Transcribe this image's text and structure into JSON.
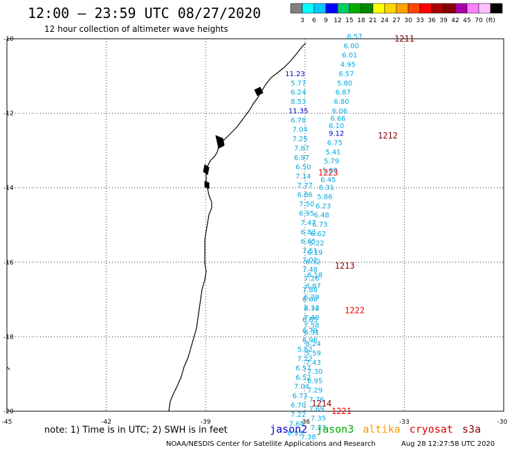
{
  "header": {
    "title": "12:00 – 23:59 UTC 08/27/2020",
    "subtitle": "12 hour collection of altimeter wave heights"
  },
  "legend": {
    "colors": [
      "#808080",
      "#00ffff",
      "#00c8ff",
      "#0000ff",
      "#00cc66",
      "#00aa00",
      "#008800",
      "#ffff00",
      "#ffd700",
      "#ffa500",
      "#ff4500",
      "#ff0000",
      "#aa0000",
      "#880000",
      "#aa00aa",
      "#ff80ff",
      "#ffc0ff",
      "#000000"
    ],
    "labels": [
      "3",
      "6",
      "9",
      "12",
      "15",
      "18",
      "21",
      "24",
      "27",
      "30",
      "33",
      "36",
      "39",
      "42",
      "45",
      "70",
      "(ft)"
    ]
  },
  "axes": {
    "lat_labels": [
      "-10",
      "-12",
      "-14",
      "-16",
      "-18",
      "-20"
    ],
    "lon_labels": [
      "-45",
      "-42",
      "-39",
      "-36",
      "-33",
      "-30"
    ]
  },
  "note": "note: 1) Time is in UTC; 2) SWH is in feet",
  "satellites": [
    {
      "name": "jason2",
      "color": "#0000cc"
    },
    {
      "name": "jason3",
      "color": "#00aa00"
    },
    {
      "name": "altika",
      "color": "#ff9900"
    },
    {
      "name": "cryosat",
      "color": "#dd0000"
    },
    {
      "name": "s3a",
      "color": "#880000"
    }
  ],
  "footer": {
    "credit": "NOAA/NESDIS Center for Satellite Applications and Research",
    "timestamp": "Aug 28 12:27:58 UTC 2020"
  },
  "tracks": [
    {
      "id": "1211",
      "label_color": "#880000",
      "points": [
        {
          "lat": -10.0,
          "lon": -34.5,
          "v": "6.57"
        },
        {
          "lat": -10.25,
          "lon": -34.6,
          "v": "6.00"
        },
        {
          "lat": -10.5,
          "lon": -34.65,
          "v": "6.01"
        },
        {
          "lat": -10.75,
          "lon": -34.7,
          "v": "4.95"
        },
        {
          "lat": -11.0,
          "lon": -34.75,
          "v": "6.57"
        },
        {
          "lat": -11.25,
          "lon": -34.8,
          "v": "5.80"
        },
        {
          "lat": -11.5,
          "lon": -34.85,
          "v": "6.87"
        },
        {
          "lat": -11.75,
          "lon": -34.9,
          "v": "6.80"
        },
        {
          "lat": -12.0,
          "lon": -34.95,
          "v": "6.06"
        },
        {
          "lat": -12.2,
          "lon": -35.0,
          "v": "6.66"
        },
        {
          "lat": -12.4,
          "lon": -35.05,
          "v": "6.10"
        }
      ]
    },
    {
      "id": "1212",
      "label_color": "#880000",
      "points": [
        {
          "lat": -12.6,
          "lon": -35.05,
          "v": "9.12"
        },
        {
          "lat": -12.85,
          "lon": -35.1,
          "v": "6.75"
        },
        {
          "lat": -13.1,
          "lon": -35.15,
          "v": "5.41"
        },
        {
          "lat": -13.35,
          "lon": -35.2,
          "v": "5.79"
        },
        {
          "lat": -13.6,
          "lon": -35.25,
          "v": "5.88"
        },
        {
          "lat": -13.85,
          "lon": -35.3,
          "v": "6.45"
        },
        {
          "lat": -14.05,
          "lon": -35.35,
          "v": "6.31"
        },
        {
          "lat": -14.3,
          "lon": -35.4,
          "v": "5.86"
        },
        {
          "lat": -14.55,
          "lon": -35.45,
          "v": "6.23"
        },
        {
          "lat": -14.8,
          "lon": -35.5,
          "v": "6.48"
        },
        {
          "lat": -15.05,
          "lon": -35.55,
          "v": "6.73"
        },
        {
          "lat": -15.3,
          "lon": -35.6,
          "v": "6.62"
        },
        {
          "lat": -15.55,
          "lon": -35.65,
          "v": "5.22"
        },
        {
          "lat": -15.8,
          "lon": -35.7,
          "v": "6.19"
        },
        {
          "lat": -16.05,
          "lon": -35.75,
          "v": "6.32"
        }
      ]
    },
    {
      "id": "1223",
      "label_color": "#ee0000",
      "points": [
        {
          "lat": -11.0,
          "lon": -36.3,
          "v": "11.23"
        },
        {
          "lat": -11.25,
          "lon": -36.2,
          "v": "5.77"
        },
        {
          "lat": -11.5,
          "lon": -36.2,
          "v": "6.24"
        },
        {
          "lat": -11.75,
          "lon": -36.2,
          "v": "8.53"
        },
        {
          "lat": -12.0,
          "lon": -36.2,
          "v": "11.35"
        },
        {
          "lat": -12.25,
          "lon": -36.2,
          "v": "6.78"
        },
        {
          "lat": -12.5,
          "lon": -36.15,
          "v": "7.04"
        },
        {
          "lat": -12.75,
          "lon": -36.15,
          "v": "7.25"
        },
        {
          "lat": -13.0,
          "lon": -36.1,
          "v": "7.67"
        },
        {
          "lat": -13.25,
          "lon": -36.1,
          "v": "6.97"
        },
        {
          "lat": -13.5,
          "lon": -36.05,
          "v": "6.50"
        },
        {
          "lat": -13.75,
          "lon": -36.05,
          "v": "7.14"
        },
        {
          "lat": -14.0,
          "lon": -36.0,
          "v": "7.77"
        },
        {
          "lat": -14.25,
          "lon": -36.0,
          "v": "6.86"
        },
        {
          "lat": -14.5,
          "lon": -35.95,
          "v": "7.50"
        },
        {
          "lat": -14.75,
          "lon": -35.95,
          "v": "6.95"
        },
        {
          "lat": -15.0,
          "lon": -35.9,
          "v": "7.47"
        },
        {
          "lat": -15.25,
          "lon": -35.9,
          "v": "6.83"
        },
        {
          "lat": -15.5,
          "lon": -35.9,
          "v": "6.65"
        },
        {
          "lat": -15.75,
          "lon": -35.85,
          "v": "7.51"
        },
        {
          "lat": -16.0,
          "lon": -35.85,
          "v": "7.02"
        },
        {
          "lat": -16.25,
          "lon": -35.85,
          "v": "7.48"
        },
        {
          "lat": -16.5,
          "lon": -35.8,
          "v": "7.26"
        }
      ]
    },
    {
      "id": "1213",
      "label_color": "#880000",
      "points": [
        {
          "lat": -16.4,
          "lon": -35.7,
          "v": "6.18"
        },
        {
          "lat": -16.7,
          "lon": -35.75,
          "v": "6.87"
        },
        {
          "lat": -17.0,
          "lon": -35.8,
          "v": "6.79"
        },
        {
          "lat": -17.3,
          "lon": -35.8,
          "v": "6.34"
        },
        {
          "lat": -17.6,
          "lon": -35.85,
          "v": "6.85"
        },
        {
          "lat": -17.9,
          "lon": -35.85,
          "v": "6.79"
        }
      ]
    },
    {
      "id": "1222",
      "label_color": "#ee0000",
      "points": [
        {
          "lat": -16.8,
          "lon": -35.85,
          "v": "7.88"
        },
        {
          "lat": -17.05,
          "lon": -35.85,
          "v": "6.66"
        },
        {
          "lat": -17.3,
          "lon": -35.8,
          "v": "7.72"
        },
        {
          "lat": -17.55,
          "lon": -35.8,
          "v": "7.49"
        },
        {
          "lat": -17.75,
          "lon": -35.8,
          "v": "7.58"
        },
        {
          "lat": -17.95,
          "lon": -35.8,
          "v": "6.31"
        },
        {
          "lat": -18.15,
          "lon": -35.85,
          "v": "6.96"
        }
      ]
    },
    {
      "id": "1214",
      "label_color": "#880000",
      "points": [
        {
          "lat": -18.25,
          "lon": -35.75,
          "v": "6.24"
        },
        {
          "lat": -18.5,
          "lon": -35.75,
          "v": "5.59"
        },
        {
          "lat": -18.75,
          "lon": -35.75,
          "v": "7.43"
        },
        {
          "lat": -19.0,
          "lon": -35.7,
          "v": "7.30"
        },
        {
          "lat": -19.25,
          "lon": -35.7,
          "v": "6.95"
        },
        {
          "lat": -19.5,
          "lon": -35.7,
          "v": "7.29"
        },
        {
          "lat": -19.75,
          "lon": -35.65,
          "v": "7.76"
        },
        {
          "lat": -20.0,
          "lon": -35.65,
          "v": "7.69"
        },
        {
          "lat": -20.25,
          "lon": -35.6,
          "v": "7.35"
        },
        {
          "lat": -20.5,
          "lon": -35.6,
          "v": "7.23"
        }
      ]
    },
    {
      "id": "1221",
      "label_color": "#ee0000",
      "points": [
        {
          "lat": -18.4,
          "lon": -36.0,
          "v": "5.62"
        },
        {
          "lat": -18.65,
          "lon": -36.0,
          "v": "7.22"
        },
        {
          "lat": -18.9,
          "lon": -36.05,
          "v": "6.57"
        },
        {
          "lat": -19.15,
          "lon": -36.05,
          "v": "6.52"
        },
        {
          "lat": -19.4,
          "lon": -36.1,
          "v": "7.04"
        },
        {
          "lat": -19.65,
          "lon": -36.15,
          "v": "6.73"
        },
        {
          "lat": -19.9,
          "lon": -36.2,
          "v": "6.70"
        },
        {
          "lat": -20.15,
          "lon": -36.2,
          "v": "7.22"
        },
        {
          "lat": -20.4,
          "lon": -36.25,
          "v": "7.64"
        },
        {
          "lat": -20.65,
          "lon": -36.3,
          "v": "6.95"
        },
        {
          "lat": -20.75,
          "lon": -35.9,
          "v": "7.38"
        }
      ]
    }
  ]
}
